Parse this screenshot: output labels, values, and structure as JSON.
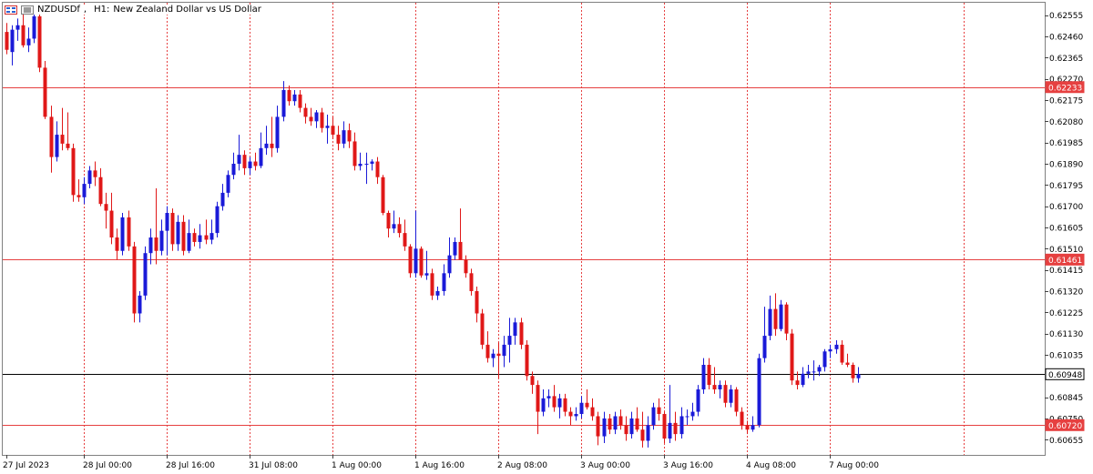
{
  "title": {
    "symbol": "NZDUSDf",
    "timeframe": "H1:",
    "description": "New Zealand Dollar vs US Dollar"
  },
  "colors": {
    "up": "#1a1ad8",
    "down": "#e01818",
    "grid": "#e64040",
    "hline": "#e64040",
    "current": "#000000",
    "text": "#000000"
  },
  "chart_data": {
    "type": "candlestick",
    "ylim": [
      0.6057,
      0.6262
    ],
    "y_ticks": [
      "0.62555",
      "0.62460",
      "0.62365",
      "0.62270",
      "0.62175",
      "0.62080",
      "0.61985",
      "0.61890",
      "0.61795",
      "0.61700",
      "0.61605",
      "0.61510",
      "0.61415",
      "0.61320",
      "0.61225",
      "0.61130",
      "0.61035",
      "0.60845",
      "0.60750",
      "0.60655"
    ],
    "x_labels": [
      "27 Jul 2023",
      "28 Jul 00:00",
      "28 Jul 16:00",
      "31 Jul 08:00",
      "1 Aug 00:00",
      "1 Aug 16:00",
      "2 Aug 08:00",
      "3 Aug 00:00",
      "3 Aug 16:00",
      "4 Aug 08:00",
      "7 Aug 00:00"
    ],
    "x_label_index": [
      0,
      14,
      29,
      44,
      59,
      74,
      89,
      104,
      119,
      134,
      149
    ],
    "horizontal_lines": [
      {
        "price": 0.62233,
        "label": "0.62233",
        "kind": "level"
      },
      {
        "price": 0.61461,
        "label": "0.61461",
        "kind": "level"
      },
      {
        "price": 0.60948,
        "label": "0.60948",
        "kind": "current"
      },
      {
        "price": 0.6072,
        "label": "0.60720",
        "kind": "level"
      }
    ],
    "candles": [
      {
        "o": 0.6248,
        "h": 0.6252,
        "l": 0.6238,
        "c": 0.624
      },
      {
        "o": 0.6239,
        "h": 0.6251,
        "l": 0.6233,
        "c": 0.6249
      },
      {
        "o": 0.6249,
        "h": 0.6254,
        "l": 0.6244,
        "c": 0.6251
      },
      {
        "o": 0.6251,
        "h": 0.6256,
        "l": 0.6241,
        "c": 0.6242
      },
      {
        "o": 0.6242,
        "h": 0.625,
        "l": 0.6239,
        "c": 0.6245
      },
      {
        "o": 0.6245,
        "h": 0.6259,
        "l": 0.6243,
        "c": 0.6255
      },
      {
        "o": 0.6255,
        "h": 0.6257,
        "l": 0.623,
        "c": 0.6232
      },
      {
        "o": 0.6232,
        "h": 0.6235,
        "l": 0.6209,
        "c": 0.621
      },
      {
        "o": 0.621,
        "h": 0.6215,
        "l": 0.6185,
        "c": 0.6192
      },
      {
        "o": 0.6192,
        "h": 0.6208,
        "l": 0.619,
        "c": 0.6202
      },
      {
        "o": 0.6202,
        "h": 0.6214,
        "l": 0.6195,
        "c": 0.6198
      },
      {
        "o": 0.6198,
        "h": 0.6212,
        "l": 0.6195,
        "c": 0.6196
      },
      {
        "o": 0.6196,
        "h": 0.6198,
        "l": 0.6172,
        "c": 0.6175
      },
      {
        "o": 0.6175,
        "h": 0.6182,
        "l": 0.6172,
        "c": 0.6174
      },
      {
        "o": 0.6174,
        "h": 0.6183,
        "l": 0.6171,
        "c": 0.618
      },
      {
        "o": 0.618,
        "h": 0.6188,
        "l": 0.6178,
        "c": 0.6186
      },
      {
        "o": 0.6186,
        "h": 0.619,
        "l": 0.6179,
        "c": 0.6183
      },
      {
        "o": 0.6183,
        "h": 0.6187,
        "l": 0.617,
        "c": 0.6171
      },
      {
        "o": 0.6171,
        "h": 0.6176,
        "l": 0.616,
        "c": 0.6168
      },
      {
        "o": 0.6168,
        "h": 0.6176,
        "l": 0.6153,
        "c": 0.6156
      },
      {
        "o": 0.6156,
        "h": 0.616,
        "l": 0.6146,
        "c": 0.615
      },
      {
        "o": 0.615,
        "h": 0.6167,
        "l": 0.6148,
        "c": 0.6165
      },
      {
        "o": 0.6165,
        "h": 0.6168,
        "l": 0.615,
        "c": 0.6152
      },
      {
        "o": 0.6152,
        "h": 0.6154,
        "l": 0.6118,
        "c": 0.6122
      },
      {
        "o": 0.6122,
        "h": 0.6132,
        "l": 0.6118,
        "c": 0.613
      },
      {
        "o": 0.613,
        "h": 0.6152,
        "l": 0.6128,
        "c": 0.6149
      },
      {
        "o": 0.6149,
        "h": 0.616,
        "l": 0.6144,
        "c": 0.6156
      },
      {
        "o": 0.6156,
        "h": 0.6178,
        "l": 0.6144,
        "c": 0.615
      },
      {
        "o": 0.615,
        "h": 0.6164,
        "l": 0.6148,
        "c": 0.6159
      },
      {
        "o": 0.6159,
        "h": 0.617,
        "l": 0.6148,
        "c": 0.6167
      },
      {
        "o": 0.6167,
        "h": 0.6169,
        "l": 0.615,
        "c": 0.6153
      },
      {
        "o": 0.6153,
        "h": 0.6166,
        "l": 0.615,
        "c": 0.6163
      },
      {
        "o": 0.6163,
        "h": 0.6166,
        "l": 0.6148,
        "c": 0.615
      },
      {
        "o": 0.615,
        "h": 0.6164,
        "l": 0.6149,
        "c": 0.6158
      },
      {
        "o": 0.6158,
        "h": 0.616,
        "l": 0.6152,
        "c": 0.6154
      },
      {
        "o": 0.6154,
        "h": 0.6162,
        "l": 0.6151,
        "c": 0.6157
      },
      {
        "o": 0.6157,
        "h": 0.6164,
        "l": 0.6153,
        "c": 0.6155
      },
      {
        "o": 0.6155,
        "h": 0.6164,
        "l": 0.6153,
        "c": 0.6158
      },
      {
        "o": 0.6158,
        "h": 0.6172,
        "l": 0.6156,
        "c": 0.617
      },
      {
        "o": 0.617,
        "h": 0.618,
        "l": 0.6168,
        "c": 0.6176
      },
      {
        "o": 0.6176,
        "h": 0.6186,
        "l": 0.6174,
        "c": 0.6184
      },
      {
        "o": 0.6184,
        "h": 0.6194,
        "l": 0.6182,
        "c": 0.6189
      },
      {
        "o": 0.6189,
        "h": 0.6202,
        "l": 0.6186,
        "c": 0.6193
      },
      {
        "o": 0.6193,
        "h": 0.6195,
        "l": 0.6184,
        "c": 0.6187
      },
      {
        "o": 0.6187,
        "h": 0.6192,
        "l": 0.6184,
        "c": 0.619
      },
      {
        "o": 0.619,
        "h": 0.6194,
        "l": 0.6186,
        "c": 0.6188
      },
      {
        "o": 0.6188,
        "h": 0.6203,
        "l": 0.6187,
        "c": 0.6196
      },
      {
        "o": 0.6196,
        "h": 0.6206,
        "l": 0.6193,
        "c": 0.6198
      },
      {
        "o": 0.6198,
        "h": 0.621,
        "l": 0.6192,
        "c": 0.6196
      },
      {
        "o": 0.6196,
        "h": 0.6215,
        "l": 0.6194,
        "c": 0.621
      },
      {
        "o": 0.621,
        "h": 0.6226,
        "l": 0.6208,
        "c": 0.6222
      },
      {
        "o": 0.6222,
        "h": 0.6224,
        "l": 0.6215,
        "c": 0.6217
      },
      {
        "o": 0.6217,
        "h": 0.6222,
        "l": 0.6215,
        "c": 0.622
      },
      {
        "o": 0.622,
        "h": 0.6222,
        "l": 0.6212,
        "c": 0.6214
      },
      {
        "o": 0.6214,
        "h": 0.6216,
        "l": 0.6207,
        "c": 0.621
      },
      {
        "o": 0.621,
        "h": 0.6214,
        "l": 0.6206,
        "c": 0.6208
      },
      {
        "o": 0.6208,
        "h": 0.6213,
        "l": 0.6205,
        "c": 0.6212
      },
      {
        "o": 0.6212,
        "h": 0.6214,
        "l": 0.6203,
        "c": 0.6205
      },
      {
        "o": 0.6205,
        "h": 0.6211,
        "l": 0.6198,
        "c": 0.6206
      },
      {
        "o": 0.6206,
        "h": 0.621,
        "l": 0.62,
        "c": 0.6202
      },
      {
        "o": 0.6202,
        "h": 0.6206,
        "l": 0.6195,
        "c": 0.6198
      },
      {
        "o": 0.6198,
        "h": 0.6208,
        "l": 0.6196,
        "c": 0.6204
      },
      {
        "o": 0.6204,
        "h": 0.6207,
        "l": 0.6196,
        "c": 0.6199
      },
      {
        "o": 0.6199,
        "h": 0.6203,
        "l": 0.6186,
        "c": 0.6188
      },
      {
        "o": 0.6188,
        "h": 0.6194,
        "l": 0.6186,
        "c": 0.6189
      },
      {
        "o": 0.6189,
        "h": 0.6194,
        "l": 0.618,
        "c": 0.6189
      },
      {
        "o": 0.6189,
        "h": 0.6191,
        "l": 0.6186,
        "c": 0.619
      },
      {
        "o": 0.619,
        "h": 0.6192,
        "l": 0.618,
        "c": 0.6183
      },
      {
        "o": 0.6183,
        "h": 0.6184,
        "l": 0.6166,
        "c": 0.6167
      },
      {
        "o": 0.6167,
        "h": 0.6168,
        "l": 0.6156,
        "c": 0.616
      },
      {
        "o": 0.616,
        "h": 0.6168,
        "l": 0.6158,
        "c": 0.6162
      },
      {
        "o": 0.6162,
        "h": 0.6165,
        "l": 0.6156,
        "c": 0.6158
      },
      {
        "o": 0.6158,
        "h": 0.6164,
        "l": 0.615,
        "c": 0.6152
      },
      {
        "o": 0.6152,
        "h": 0.6153,
        "l": 0.6138,
        "c": 0.614
      },
      {
        "o": 0.614,
        "h": 0.6168,
        "l": 0.6138,
        "c": 0.6151
      },
      {
        "o": 0.6151,
        "h": 0.6152,
        "l": 0.6138,
        "c": 0.6139
      },
      {
        "o": 0.6139,
        "h": 0.615,
        "l": 0.6137,
        "c": 0.614
      },
      {
        "o": 0.614,
        "h": 0.6142,
        "l": 0.6128,
        "c": 0.613
      },
      {
        "o": 0.613,
        "h": 0.6134,
        "l": 0.6128,
        "c": 0.6132
      },
      {
        "o": 0.6132,
        "h": 0.6144,
        "l": 0.613,
        "c": 0.614
      },
      {
        "o": 0.614,
        "h": 0.6156,
        "l": 0.6138,
        "c": 0.6148
      },
      {
        "o": 0.6148,
        "h": 0.6156,
        "l": 0.6146,
        "c": 0.6154
      },
      {
        "o": 0.6154,
        "h": 0.6169,
        "l": 0.6148,
        "c": 0.6146
      },
      {
        "o": 0.6146,
        "h": 0.6148,
        "l": 0.6138,
        "c": 0.614
      },
      {
        "o": 0.614,
        "h": 0.6142,
        "l": 0.613,
        "c": 0.6132
      },
      {
        "o": 0.6132,
        "h": 0.6134,
        "l": 0.6118,
        "c": 0.6122
      },
      {
        "o": 0.6122,
        "h": 0.6124,
        "l": 0.6106,
        "c": 0.6108
      },
      {
        "o": 0.6108,
        "h": 0.6114,
        "l": 0.61,
        "c": 0.6102
      },
      {
        "o": 0.6102,
        "h": 0.6106,
        "l": 0.6098,
        "c": 0.6104
      },
      {
        "o": 0.6104,
        "h": 0.6109,
        "l": 0.6093,
        "c": 0.6103
      },
      {
        "o": 0.6103,
        "h": 0.6112,
        "l": 0.6098,
        "c": 0.6108
      },
      {
        "o": 0.6108,
        "h": 0.612,
        "l": 0.61,
        "c": 0.6112
      },
      {
        "o": 0.6112,
        "h": 0.612,
        "l": 0.6108,
        "c": 0.6118
      },
      {
        "o": 0.6118,
        "h": 0.612,
        "l": 0.6106,
        "c": 0.6108
      },
      {
        "o": 0.6108,
        "h": 0.611,
        "l": 0.6092,
        "c": 0.6094
      },
      {
        "o": 0.6094,
        "h": 0.6096,
        "l": 0.6086,
        "c": 0.609
      },
      {
        "o": 0.609,
        "h": 0.6092,
        "l": 0.6068,
        "c": 0.6078
      },
      {
        "o": 0.6078,
        "h": 0.6088,
        "l": 0.6076,
        "c": 0.6084
      },
      {
        "o": 0.6084,
        "h": 0.6088,
        "l": 0.608,
        "c": 0.6085
      },
      {
        "o": 0.6085,
        "h": 0.609,
        "l": 0.6078,
        "c": 0.608
      },
      {
        "o": 0.608,
        "h": 0.6086,
        "l": 0.6075,
        "c": 0.6084
      },
      {
        "o": 0.6084,
        "h": 0.6086,
        "l": 0.6076,
        "c": 0.6078
      },
      {
        "o": 0.6078,
        "h": 0.608,
        "l": 0.6072,
        "c": 0.6076
      },
      {
        "o": 0.6076,
        "h": 0.608,
        "l": 0.6074,
        "c": 0.6077
      },
      {
        "o": 0.6077,
        "h": 0.6085,
        "l": 0.6075,
        "c": 0.6082
      },
      {
        "o": 0.6082,
        "h": 0.6088,
        "l": 0.6079,
        "c": 0.608
      },
      {
        "o": 0.608,
        "h": 0.6084,
        "l": 0.6074,
        "c": 0.6076
      },
      {
        "o": 0.6076,
        "h": 0.6078,
        "l": 0.6063,
        "c": 0.6067
      },
      {
        "o": 0.6067,
        "h": 0.6078,
        "l": 0.6064,
        "c": 0.6075
      },
      {
        "o": 0.6075,
        "h": 0.6077,
        "l": 0.6068,
        "c": 0.607
      },
      {
        "o": 0.607,
        "h": 0.6078,
        "l": 0.6068,
        "c": 0.6076
      },
      {
        "o": 0.6076,
        "h": 0.6079,
        "l": 0.607,
        "c": 0.6072
      },
      {
        "o": 0.6072,
        "h": 0.6076,
        "l": 0.6065,
        "c": 0.6068
      },
      {
        "o": 0.6068,
        "h": 0.6078,
        "l": 0.6066,
        "c": 0.6075
      },
      {
        "o": 0.6075,
        "h": 0.608,
        "l": 0.6069,
        "c": 0.607
      },
      {
        "o": 0.607,
        "h": 0.6078,
        "l": 0.6062,
        "c": 0.6065
      },
      {
        "o": 0.6065,
        "h": 0.6076,
        "l": 0.6062,
        "c": 0.6072
      },
      {
        "o": 0.6072,
        "h": 0.6082,
        "l": 0.607,
        "c": 0.608
      },
      {
        "o": 0.608,
        "h": 0.6084,
        "l": 0.6074,
        "c": 0.6077
      },
      {
        "o": 0.6077,
        "h": 0.6078,
        "l": 0.6064,
        "c": 0.6066
      },
      {
        "o": 0.6066,
        "h": 0.609,
        "l": 0.6064,
        "c": 0.6073
      },
      {
        "o": 0.6073,
        "h": 0.6078,
        "l": 0.6065,
        "c": 0.6068
      },
      {
        "o": 0.6068,
        "h": 0.608,
        "l": 0.6066,
        "c": 0.6076
      },
      {
        "o": 0.6076,
        "h": 0.6079,
        "l": 0.6072,
        "c": 0.6076
      },
      {
        "o": 0.6076,
        "h": 0.6082,
        "l": 0.6074,
        "c": 0.6078
      },
      {
        "o": 0.6078,
        "h": 0.609,
        "l": 0.6076,
        "c": 0.6088
      },
      {
        "o": 0.6088,
        "h": 0.6102,
        "l": 0.6086,
        "c": 0.6099
      },
      {
        "o": 0.6099,
        "h": 0.6102,
        "l": 0.6088,
        "c": 0.609
      },
      {
        "o": 0.609,
        "h": 0.6098,
        "l": 0.6086,
        "c": 0.6088
      },
      {
        "o": 0.6088,
        "h": 0.6092,
        "l": 0.6084,
        "c": 0.609
      },
      {
        "o": 0.609,
        "h": 0.6092,
        "l": 0.608,
        "c": 0.6082
      },
      {
        "o": 0.6082,
        "h": 0.609,
        "l": 0.608,
        "c": 0.6088
      },
      {
        "o": 0.6088,
        "h": 0.6089,
        "l": 0.6076,
        "c": 0.6078
      },
      {
        "o": 0.6078,
        "h": 0.608,
        "l": 0.607,
        "c": 0.6072
      },
      {
        "o": 0.6072,
        "h": 0.6074,
        "l": 0.6068,
        "c": 0.607
      },
      {
        "o": 0.607,
        "h": 0.6076,
        "l": 0.6069,
        "c": 0.6072
      },
      {
        "o": 0.6072,
        "h": 0.6104,
        "l": 0.6071,
        "c": 0.6102
      },
      {
        "o": 0.6102,
        "h": 0.6125,
        "l": 0.61,
        "c": 0.6112
      },
      {
        "o": 0.6112,
        "h": 0.613,
        "l": 0.611,
        "c": 0.6124
      },
      {
        "o": 0.6124,
        "h": 0.6131,
        "l": 0.6112,
        "c": 0.6115
      },
      {
        "o": 0.6115,
        "h": 0.6128,
        "l": 0.6114,
        "c": 0.6126
      },
      {
        "o": 0.6126,
        "h": 0.6127,
        "l": 0.611,
        "c": 0.6113
      },
      {
        "o": 0.6113,
        "h": 0.6115,
        "l": 0.609,
        "c": 0.6092
      },
      {
        "o": 0.6092,
        "h": 0.6096,
        "l": 0.6088,
        "c": 0.609
      },
      {
        "o": 0.609,
        "h": 0.6098,
        "l": 0.6089,
        "c": 0.6095
      },
      {
        "o": 0.6095,
        "h": 0.6099,
        "l": 0.6093,
        "c": 0.6096
      },
      {
        "o": 0.6096,
        "h": 0.6101,
        "l": 0.6092,
        "c": 0.6096
      },
      {
        "o": 0.6096,
        "h": 0.6099,
        "l": 0.6094,
        "c": 0.6098
      },
      {
        "o": 0.6098,
        "h": 0.6106,
        "l": 0.6096,
        "c": 0.6105
      },
      {
        "o": 0.6105,
        "h": 0.6108,
        "l": 0.6102,
        "c": 0.6106
      },
      {
        "o": 0.6106,
        "h": 0.611,
        "l": 0.6104,
        "c": 0.6108
      },
      {
        "o": 0.6108,
        "h": 0.611,
        "l": 0.6099,
        "c": 0.61
      },
      {
        "o": 0.61,
        "h": 0.6104,
        "l": 0.6098,
        "c": 0.6099
      },
      {
        "o": 0.6099,
        "h": 0.61,
        "l": 0.6091,
        "c": 0.6093
      },
      {
        "o": 0.6093,
        "h": 0.6098,
        "l": 0.6091,
        "c": 0.60948
      }
    ]
  }
}
